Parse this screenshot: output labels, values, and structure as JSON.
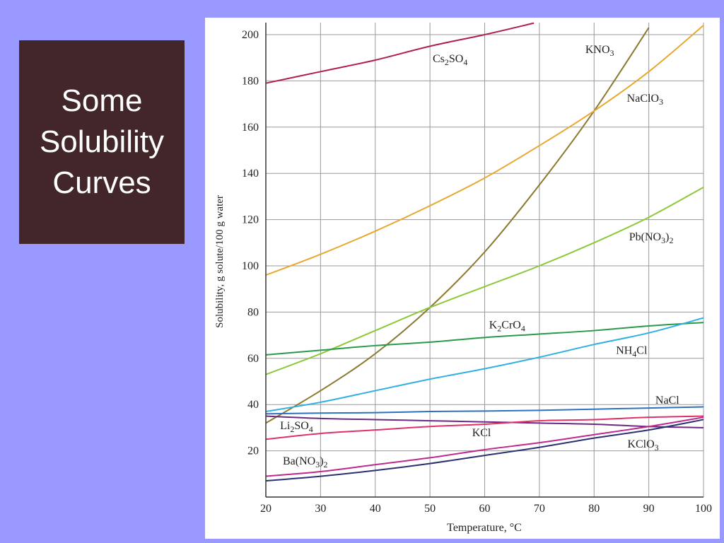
{
  "slide": {
    "title_lines": [
      "Some",
      "Solubility",
      "Curves"
    ],
    "background": "#9999ff",
    "title_bg": "#42262a"
  },
  "chart_data": {
    "type": "line",
    "title": "",
    "xlabel": "Temperature, °C",
    "ylabel": "Solubility, g solute/100 g water",
    "xlim": [
      20,
      100
    ],
    "ylim": [
      0,
      205
    ],
    "xticks": [
      20,
      30,
      40,
      50,
      60,
      70,
      80,
      90,
      100
    ],
    "yticks": [
      20,
      40,
      60,
      80,
      100,
      120,
      140,
      160,
      180,
      200
    ],
    "grid": true,
    "legend": "inline labels",
    "series": [
      {
        "name": "Cs2SO4",
        "color": "#b0204a",
        "x": [
          20,
          30,
          40,
          50,
          60,
          69
        ],
        "y": [
          179,
          184,
          189,
          195,
          200,
          205
        ],
        "label_at": [
          50.5,
          188
        ]
      },
      {
        "name": "KNO3",
        "color": "#8a7a30",
        "x": [
          20,
          30,
          40,
          50,
          60,
          70,
          80,
          90
        ],
        "y": [
          32,
          46,
          62,
          82,
          106,
          135,
          167,
          203
        ],
        "label_at": [
          78.4,
          192
        ]
      },
      {
        "name": "NaClO3",
        "color": "#e8a830",
        "x": [
          20,
          30,
          40,
          50,
          60,
          70,
          80,
          90,
          100
        ],
        "y": [
          96,
          105,
          115,
          126,
          138,
          152,
          167,
          184,
          204
        ],
        "label_at": [
          86,
          171
        ]
      },
      {
        "name": "Pb(NO3)2",
        "color": "#8cc83a",
        "x": [
          20,
          30,
          40,
          50,
          60,
          70,
          80,
          90,
          100
        ],
        "y": [
          53,
          62,
          72,
          82,
          91,
          100,
          110,
          121,
          134
        ],
        "label_at": [
          86.4,
          111
        ]
      },
      {
        "name": "K2CrO4",
        "color": "#2a9a4a",
        "x": [
          20,
          30,
          40,
          50,
          60,
          70,
          80,
          90,
          100
        ],
        "y": [
          61.5,
          63.5,
          65.5,
          67,
          69,
          70.5,
          72,
          74,
          75.5
        ],
        "label_at": [
          60.8,
          73
        ]
      },
      {
        "name": "NH4Cl",
        "color": "#30b0e0",
        "x": [
          20,
          30,
          40,
          50,
          60,
          70,
          80,
          90,
          100
        ],
        "y": [
          37,
          41,
          46,
          51,
          55.5,
          60.5,
          66,
          71,
          77.5
        ],
        "label_at": [
          84,
          62
        ]
      },
      {
        "name": "NaCl",
        "color": "#3070c0",
        "x": [
          20,
          30,
          40,
          50,
          60,
          70,
          80,
          90,
          100
        ],
        "y": [
          36,
          36.3,
          36.5,
          37,
          37.2,
          37.5,
          38,
          38.5,
          39
        ],
        "label_at": [
          91.2,
          40.4
        ]
      },
      {
        "name": "Li2SO4",
        "color": "#6a2a80",
        "x": [
          20,
          30,
          40,
          50,
          60,
          70,
          80,
          90,
          100
        ],
        "y": [
          35,
          34,
          33.5,
          33,
          32.5,
          32,
          31.5,
          30.5,
          30
        ],
        "label_at": [
          22.6,
          29.4
        ]
      },
      {
        "name": "KCl",
        "color": "#e0306a",
        "x": [
          20,
          30,
          40,
          50,
          60,
          70,
          80,
          90,
          100
        ],
        "y": [
          25,
          27.5,
          29,
          30.5,
          31.5,
          33,
          33.5,
          34.5,
          35
        ],
        "label_at": [
          57.7,
          26.3
        ]
      },
      {
        "name": "Ba(NO3)2",
        "color": "#c02890",
        "x": [
          20,
          30,
          40,
          50,
          60,
          70,
          80,
          90,
          100
        ],
        "y": [
          9,
          11,
          14,
          17,
          20.5,
          23.5,
          27,
          30.5,
          34.5
        ],
        "label_at": [
          23.1,
          14
        ]
      },
      {
        "name": "KClO3",
        "color": "#2a3070",
        "x": [
          20,
          30,
          40,
          50,
          60,
          70,
          80,
          90,
          100
        ],
        "y": [
          7,
          9,
          11.5,
          14.5,
          18,
          21.5,
          25.5,
          29,
          33.5
        ],
        "label_at": [
          86.1,
          21.4
        ]
      }
    ]
  }
}
